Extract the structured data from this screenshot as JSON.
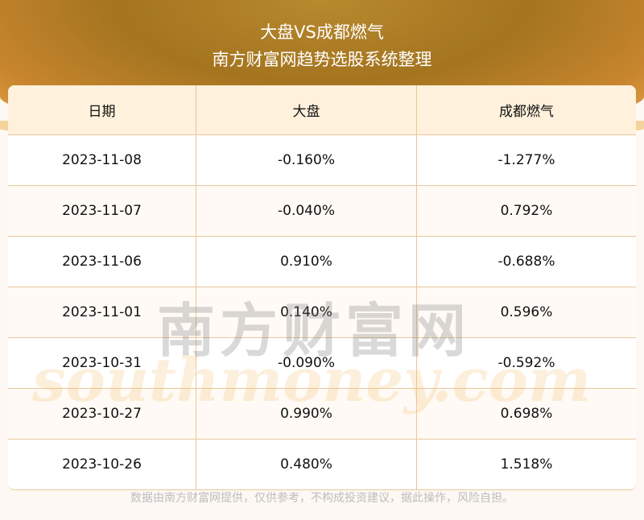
{
  "header": {
    "title": "大盘VS成都燃气",
    "subtitle": "南方财富网趋势选股系统整理"
  },
  "table": {
    "columns": [
      "日期",
      "大盘",
      "成都燃气"
    ],
    "rows": [
      [
        "2023-11-08",
        "-0.160%",
        "-1.277%"
      ],
      [
        "2023-11-07",
        "-0.040%",
        "0.792%"
      ],
      [
        "2023-11-06",
        "0.910%",
        "-0.688%"
      ],
      [
        "2023-11-01",
        "0.140%",
        "0.596%"
      ],
      [
        "2023-10-31",
        "-0.090%",
        "-0.592%"
      ],
      [
        "2023-10-27",
        "0.990%",
        "0.698%"
      ],
      [
        "2023-10-26",
        "0.480%",
        "1.518%"
      ]
    ]
  },
  "watermark": {
    "cn": "南方财富网",
    "en": "southmoney.com"
  },
  "footer": "数据由南方财富网提供，仅供参考，不构成投资建议，据此操作，风险自担。",
  "colors": {
    "header_bg": "#fff1dc",
    "border": "#e8c79a",
    "banner": "#a4741f"
  }
}
